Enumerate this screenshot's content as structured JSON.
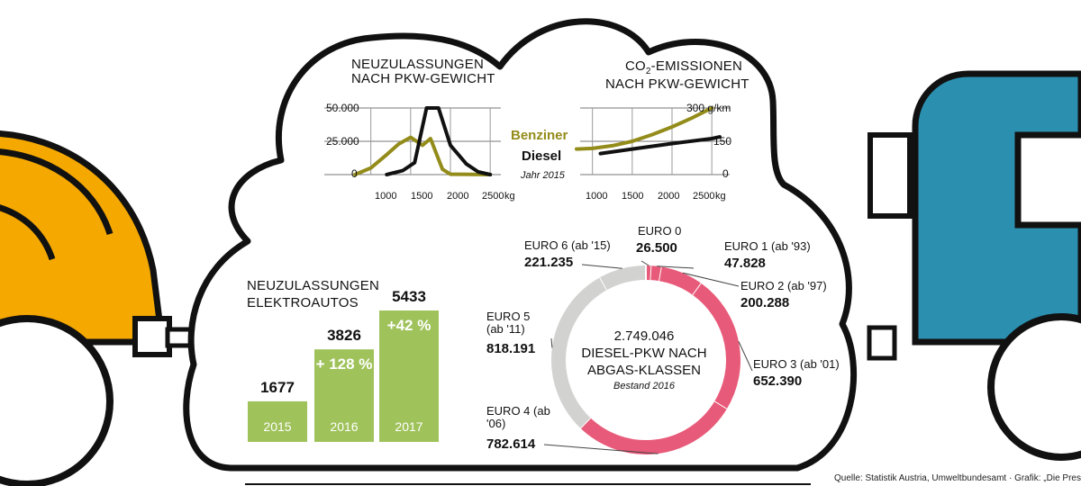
{
  "source": "Quelle: Statistik Austria, Umweltbundesamt · Grafik: „Die Presse“ · GK",
  "colors": {
    "benziner": "#938c1a",
    "diesel": "#111111",
    "green": "#9fc25b",
    "pink": "#e85a79",
    "grey": "#d2d2d0",
    "car_orange": "#f5a800",
    "truck_blue": "#2b8fb0"
  },
  "legend": {
    "benziner": "Benziner",
    "diesel": "Diesel",
    "year": "Jahr 2015"
  },
  "chart_data": [
    {
      "id": "weight",
      "type": "line",
      "title": "NEUZULASSUNGEN NACH PKW-GEWICHT",
      "x_ticks": [
        "1000",
        "1500",
        "2000",
        "2500"
      ],
      "x_unit": "kg",
      "y_ticks": [
        "50.000",
        "25.000",
        "0"
      ],
      "xlim": [
        800,
        2600
      ],
      "ylim": [
        0,
        50000
      ],
      "series": [
        {
          "name": "Benziner",
          "color": "#938c1a",
          "points": [
            [
              800,
              0
            ],
            [
              1000,
              5000
            ],
            [
              1200,
              15000
            ],
            [
              1350,
              23000
            ],
            [
              1500,
              28000
            ],
            [
              1650,
              22000
            ],
            [
              1750,
              27000
            ],
            [
              1900,
              4000
            ],
            [
              2000,
              300
            ],
            [
              2500,
              0
            ]
          ]
        },
        {
          "name": "Diesel",
          "color": "#111111",
          "points": [
            [
              1200,
              0
            ],
            [
              1400,
              3000
            ],
            [
              1550,
              9000
            ],
            [
              1700,
              50000
            ],
            [
              1850,
              50000
            ],
            [
              2000,
              22000
            ],
            [
              2200,
              8000
            ],
            [
              2350,
              2000
            ],
            [
              2500,
              0
            ]
          ]
        }
      ]
    },
    {
      "id": "co2",
      "type": "line",
      "title_pre": "CO",
      "title_sub": "2",
      "title_post": "-EMISSIONEN",
      "title_line2": "NACH PKW-GEWICHT",
      "x_ticks": [
        "1000",
        "1500",
        "2000",
        "2500"
      ],
      "x_unit": "kg",
      "y_ticks": [
        "300 g/km",
        "150",
        "0"
      ],
      "xlim": [
        800,
        2600
      ],
      "ylim": [
        0,
        300
      ],
      "series": [
        {
          "name": "Benziner",
          "color": "#938c1a",
          "points": [
            [
              800,
              115
            ],
            [
              1000,
              118
            ],
            [
              1250,
              130
            ],
            [
              1500,
              150
            ],
            [
              1750,
              180
            ],
            [
              2000,
              215
            ],
            [
              2250,
              255
            ],
            [
              2500,
              300
            ]
          ]
        },
        {
          "name": "Diesel",
          "color": "#111111",
          "points": [
            [
              1100,
              95
            ],
            [
              1500,
              115
            ],
            [
              2000,
              140
            ],
            [
              2500,
              162
            ],
            [
              2600,
              170
            ]
          ]
        }
      ]
    },
    {
      "id": "ev",
      "type": "bar",
      "title_line1": "NEUZULASSUNGEN",
      "title_line2": "ELEKTROAUTOS",
      "categories": [
        "2015",
        "2016",
        "2017"
      ],
      "values": [
        1677,
        3826,
        5433
      ],
      "value_labels": [
        "1677",
        "3826",
        "5433"
      ],
      "growth": [
        "",
        "+ 128 %",
        "+42 %"
      ],
      "ylim": [
        0,
        5433
      ],
      "color": "#9fc25b"
    },
    {
      "id": "euro",
      "type": "pie",
      "total": "2.749.046",
      "center_line1": "DIESEL-PKW NACH",
      "center_line2": "ABGAS-KLASSEN",
      "center_sub": "Bestand 2016",
      "slices": [
        {
          "name": "EURO 0",
          "value": 26500,
          "label": "26.500",
          "color": "#e85a79"
        },
        {
          "name": "EURO 1 (ab '93)",
          "value": 47828,
          "label": "47.828",
          "color": "#e85a79"
        },
        {
          "name": "EURO 2 (ab '97)",
          "value": 200288,
          "label": "200.288",
          "color": "#e85a79"
        },
        {
          "name": "EURO 3 (ab '01)",
          "value": 652390,
          "label": "652.390",
          "color": "#e85a79"
        },
        {
          "name": "EURO 4 (ab '06)",
          "value": 782614,
          "label": "782.614",
          "color": "#e85a79"
        },
        {
          "name": "EURO 5 (ab '11)",
          "value": 818191,
          "label": "818.191",
          "color": "#d2d2d0"
        },
        {
          "name": "EURO 6 (ab '15)",
          "value": 221235,
          "label": "221.235",
          "color": "#d2d2d0"
        }
      ]
    }
  ]
}
